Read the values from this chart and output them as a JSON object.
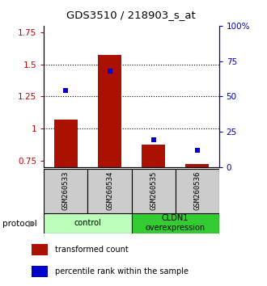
{
  "title": "GDS3510 / 218903_s_at",
  "samples": [
    "GSM260533",
    "GSM260534",
    "GSM260535",
    "GSM260536"
  ],
  "bar_values": [
    1.07,
    1.57,
    0.875,
    0.725
  ],
  "dot_values_pct": [
    0.8,
    1.0,
    0.285,
    0.175
  ],
  "bar_color": "#aa1100",
  "dot_color": "#0000cc",
  "ylim_left": [
    0.7,
    1.8
  ],
  "ylim_right": [
    0.0,
    1.4667
  ],
  "yticks_left": [
    0.75,
    1.0,
    1.25,
    1.5,
    1.75
  ],
  "ytick_labels_left": [
    "0.75",
    "1",
    "1.25",
    "1.5",
    "1.75"
  ],
  "yticks_right_pct": [
    0.0,
    0.25,
    0.5,
    0.75,
    1.0
  ],
  "ytick_labels_right": [
    "0",
    "25",
    "50",
    "75",
    "100%"
  ],
  "hlines": [
    1.0,
    1.25,
    1.5
  ],
  "groups": [
    {
      "label": "control",
      "indices": [
        0,
        1
      ],
      "color": "#bbffbb"
    },
    {
      "label": "CLDN1\noverexpression",
      "indices": [
        2,
        3
      ],
      "color": "#33cc33"
    }
  ],
  "protocol_label": "protocol",
  "legend": [
    {
      "color": "#aa1100",
      "label": "transformed count"
    },
    {
      "color": "#0000cc",
      "label": "percentile rank within the sample"
    }
  ],
  "bar_width": 0.55,
  "bar_bottom": 0.7,
  "tick_color_left": "#cc0000",
  "tick_color_right": "#0000bb",
  "sample_box_color": "#cccccc",
  "fig_width": 3.3,
  "fig_height": 3.54
}
